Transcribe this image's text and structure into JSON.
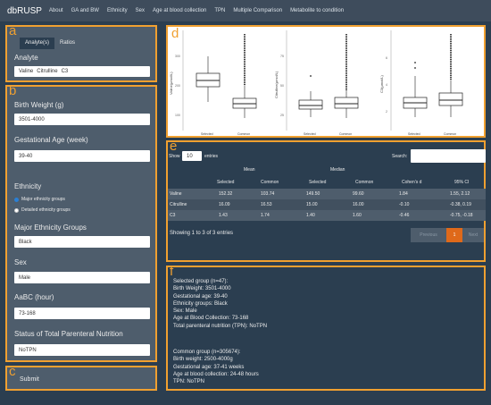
{
  "navbar": {
    "brand": "dbRUSP",
    "items": [
      "About",
      "GA and BW",
      "Ethnicity",
      "Sex",
      "Age at blood collection",
      "TPN",
      "Multiple Comparison",
      "Metabolite to condition"
    ]
  },
  "panel_tags": {
    "a": "a",
    "b": "b",
    "c": "c",
    "d": "d",
    "e": "e",
    "f": "f"
  },
  "panel_a": {
    "tabs": [
      "Analyte(s)",
      "Ratios"
    ],
    "analyte_label": "Analyte",
    "analyte_values": [
      "Valine",
      "Citrulline",
      "C3"
    ]
  },
  "panel_b": {
    "birth_weight_label": "Birth Weight (g)",
    "birth_weight_value": "3501-4000",
    "ga_label": "Gestational Age (week)",
    "ga_value": "39-40",
    "ethnicity_label": "Ethnicity",
    "ethnicity_options": [
      "Major ethnicity groups",
      "Detailed ethnicity groups"
    ],
    "major_groups_label": "Major Ethnicity Groups",
    "major_groups_value": "Black",
    "sex_label": "Sex",
    "sex_value": "Male",
    "aabc_label": "AaBC (hour)",
    "aabc_value": "73-168",
    "tpn_label": "Status of Total Parenteral Nutrition",
    "tpn_value": "NoTPN"
  },
  "panel_c": {
    "submit_label": "Submit"
  },
  "plots": [
    {
      "ylabel": "Valine(μmol/L)",
      "ticks": [
        "300",
        "200",
        "100"
      ],
      "x": [
        "Selected",
        "Common"
      ]
    },
    {
      "ylabel": "Citrulline(μmol/L)",
      "ticks": [
        "75",
        "50",
        "25"
      ],
      "x": [
        "Selected",
        "Common"
      ]
    },
    {
      "ylabel": "C3(μmol/L)",
      "ticks": [
        "6",
        "4",
        "2"
      ],
      "x": [
        "Selected",
        "Common"
      ]
    }
  ],
  "table": {
    "show_label": "Show",
    "entries_value": "10",
    "entries_label": "entries",
    "search_label": "Search:",
    "group_mean": "Mean",
    "group_median": "Median",
    "columns": [
      "Selected",
      "Common",
      "Selected",
      "Common",
      "Cohen's d",
      "95% CI"
    ],
    "rows": [
      {
        "name": "Valine",
        "cells": [
          "152.32",
          "103.74",
          "149.50",
          "99.60",
          "1.84",
          "1.55, 2.12"
        ]
      },
      {
        "name": "Citrulline",
        "cells": [
          "16.09",
          "16.53",
          "15.00",
          "16.00",
          "-0.10",
          "-0.38, 0.19"
        ]
      },
      {
        "name": "C3",
        "cells": [
          "1.43",
          "1.74",
          "1.40",
          "1.60",
          "-0.46",
          "-0.75, -0.18"
        ]
      }
    ],
    "info": "Showing 1 to 3 of 3 entries",
    "prev_label": "Previous",
    "page_label": "1",
    "next_label": "Next"
  },
  "summary": {
    "selected_lines": [
      "Selected group (n=47):",
      "Birth Weight: 3501-4000",
      "Gestational age: 39-40",
      "Ethnicity groups: Black",
      "Sex: Male",
      "Age at Blood Collection: 73-168",
      "Total parenteral nutrition (TPN): NoTPN"
    ],
    "common_lines": [
      "Common group (n=305674):",
      "Birth weight: 2500-4000g",
      "Gestational age: 37-41 weeks",
      "Age at blood collection: 24-48 hours",
      "TPN: NoTPN"
    ]
  },
  "colors": {
    "accent": "#f0a030",
    "navbar": "#3e4c5c",
    "background": "#2b3e50",
    "panel": "#4e5d6c",
    "active_page": "#df691a"
  }
}
